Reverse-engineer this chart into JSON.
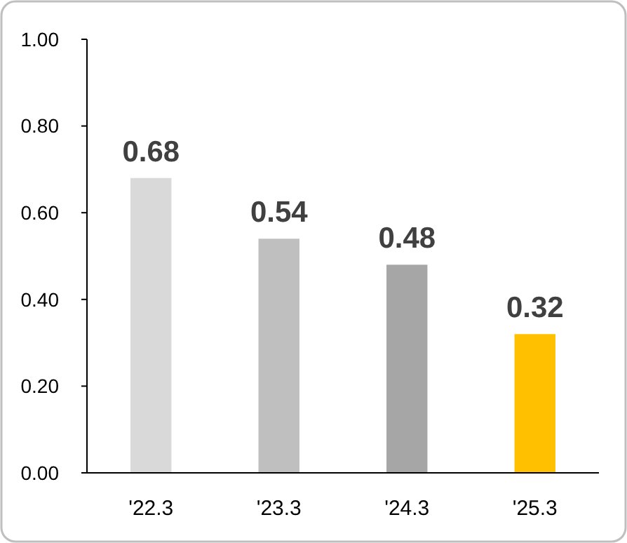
{
  "chart_data": {
    "type": "bar",
    "categories": [
      "'22.3",
      "'23.3",
      "'24.3",
      "'25.3"
    ],
    "values": [
      0.68,
      0.54,
      0.48,
      0.32
    ],
    "colors": [
      "#d9d9d9",
      "#bfbfbf",
      "#a6a6a6",
      "#ffc000"
    ],
    "ylim": [
      0,
      1
    ],
    "yticks": [
      {
        "value": 0,
        "label": "0.00"
      },
      {
        "value": 0.2,
        "label": "0.20"
      },
      {
        "value": 0.4,
        "label": "0.40"
      },
      {
        "value": 0.6,
        "label": "0.60"
      },
      {
        "value": 0.8,
        "label": "0.80"
      },
      {
        "value": 1,
        "label": "1.00"
      }
    ],
    "grid": false,
    "data_labels": true
  }
}
